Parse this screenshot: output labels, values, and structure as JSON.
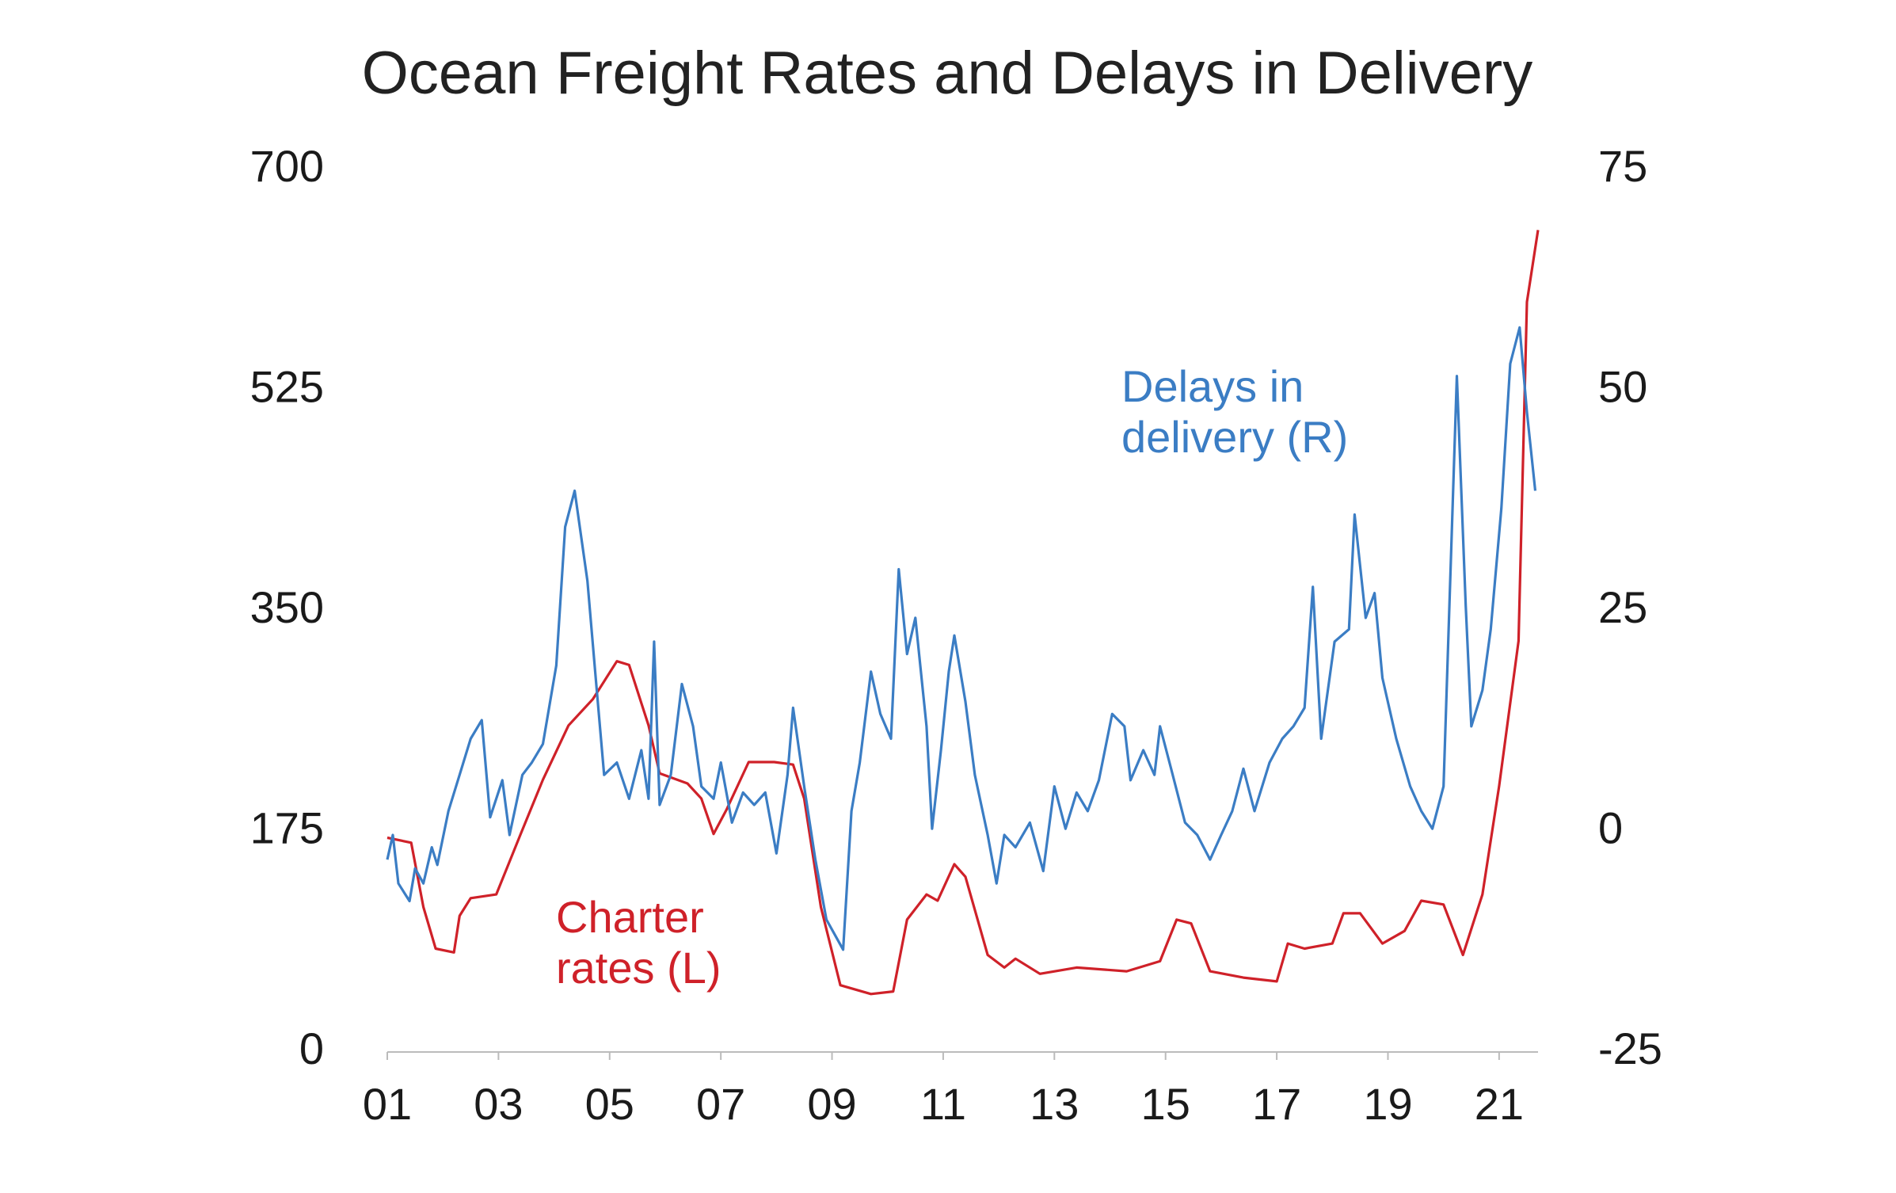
{
  "chart_data": {
    "type": "line",
    "title": "Ocean Freight Rates and Delays in Delivery",
    "xlim": [
      2001,
      2021.7
    ],
    "xticks": [
      {
        "value": 2001,
        "label": "01"
      },
      {
        "value": 2003,
        "label": "03"
      },
      {
        "value": 2005,
        "label": "05"
      },
      {
        "value": 2007,
        "label": "07"
      },
      {
        "value": 2009,
        "label": "09"
      },
      {
        "value": 2011,
        "label": "11"
      },
      {
        "value": 2013,
        "label": "13"
      },
      {
        "value": 2015,
        "label": "15"
      },
      {
        "value": 2017,
        "label": "17"
      },
      {
        "value": 2019,
        "label": "19"
      },
      {
        "value": 2021,
        "label": "21"
      }
    ],
    "ylim": [
      0,
      700
    ],
    "yticks": [
      0,
      175,
      350,
      525,
      700
    ],
    "y2lim": [
      -25,
      75
    ],
    "y2ticks": [
      -25,
      0,
      25,
      50,
      75
    ],
    "grid": false,
    "series": [
      {
        "name": "Charter rates (L)",
        "color": "#cf2129",
        "axis": "y",
        "x": [
          2001.0,
          2001.43,
          2001.65,
          2001.87,
          2002.2,
          2002.3,
          2002.5,
          2002.96,
          2003.4,
          2003.8,
          2004.26,
          2004.7,
          2005.13,
          2005.35,
          2005.7,
          2005.9,
          2006.4,
          2006.65,
          2006.87,
          2007.1,
          2007.5,
          2007.96,
          2008.3,
          2008.5,
          2008.8,
          2009.15,
          2009.7,
          2010.1,
          2010.35,
          2010.7,
          2010.9,
          2011.2,
          2011.4,
          2011.8,
          2012.1,
          2012.3,
          2012.74,
          2013.4,
          2014.3,
          2014.9,
          2015.2,
          2015.46,
          2015.8,
          2016.4,
          2017.0,
          2017.2,
          2017.5,
          2018.0,
          2018.2,
          2018.5,
          2018.9,
          2019.3,
          2019.6,
          2020.0,
          2020.35,
          2020.7,
          2021.0,
          2021.35,
          2021.5,
          2021.7
        ],
        "values": [
          170,
          166,
          115,
          82,
          79,
          108,
          122,
          125,
          173,
          216,
          259,
          280,
          310,
          307,
          259,
          221,
          213,
          201,
          173,
          192,
          230,
          230,
          228,
          201,
          115,
          53,
          46,
          48,
          105,
          125,
          120,
          149,
          139,
          77,
          67,
          74,
          62,
          67,
          64,
          72,
          105,
          102,
          64,
          59,
          56,
          86,
          82,
          86,
          110,
          110,
          86,
          96,
          120,
          117,
          77,
          125,
          211,
          326,
          595,
          652
        ]
      },
      {
        "name": "Delays in delivery (R)",
        "color": "#3b7dc4",
        "axis": "y2",
        "x": [
          2001.0,
          2001.1,
          2001.2,
          2001.4,
          2001.5,
          2001.65,
          2001.8,
          2001.9,
          2002.1,
          2002.3,
          2002.5,
          2002.7,
          2002.85,
          2003.07,
          2003.2,
          2003.43,
          2003.6,
          2003.8,
          2004.04,
          2004.2,
          2004.37,
          2004.6,
          2004.74,
          2004.9,
          2005.13,
          2005.35,
          2005.57,
          2005.7,
          2005.8,
          2005.9,
          2006.1,
          2006.3,
          2006.5,
          2006.65,
          2006.87,
          2007.0,
          2007.2,
          2007.4,
          2007.6,
          2007.8,
          2008.0,
          2008.2,
          2008.3,
          2008.5,
          2008.7,
          2008.9,
          2009.2,
          2009.35,
          2009.5,
          2009.7,
          2009.87,
          2010.06,
          2010.2,
          2010.35,
          2010.5,
          2010.7,
          2010.8,
          2010.96,
          2011.1,
          2011.2,
          2011.4,
          2011.57,
          2011.8,
          2011.96,
          2012.1,
          2012.3,
          2012.56,
          2012.8,
          2013.0,
          2013.2,
          2013.4,
          2013.6,
          2013.8,
          2014.04,
          2014.26,
          2014.37,
          2014.6,
          2014.8,
          2014.9,
          2015.1,
          2015.35,
          2015.57,
          2015.8,
          2016.0,
          2016.2,
          2016.4,
          2016.6,
          2016.87,
          2017.1,
          2017.3,
          2017.5,
          2017.65,
          2017.8,
          2018.04,
          2018.3,
          2018.4,
          2018.6,
          2018.76,
          2018.9,
          2019.15,
          2019.4,
          2019.6,
          2019.8,
          2020.0,
          2020.24,
          2020.4,
          2020.5,
          2020.7,
          2020.85,
          2021.04,
          2021.2,
          2021.37,
          2021.5,
          2021.65
        ],
        "values": [
          -3.2,
          -0.4,
          -5.9,
          -7.9,
          -4.2,
          -5.9,
          -1.8,
          -3.8,
          2.3,
          6.4,
          10.5,
          12.6,
          1.6,
          5.8,
          -0.4,
          6.4,
          7.8,
          9.9,
          18.8,
          34.5,
          38.6,
          28.4,
          18.1,
          6.4,
          7.8,
          3.7,
          9.2,
          3.7,
          21.5,
          3.0,
          6.4,
          16.7,
          11.9,
          5.1,
          3.7,
          7.8,
          1.0,
          4.4,
          3.0,
          4.4,
          -2.5,
          6.4,
          14.0,
          5.1,
          -3.2,
          -10.0,
          -13.4,
          2.3,
          7.8,
          18.1,
          13.3,
          10.5,
          29.7,
          20.1,
          24.2,
          11.9,
          0.3,
          9.2,
          18.1,
          22.2,
          14.7,
          6.4,
          -0.4,
          -5.9,
          -0.4,
          -1.8,
          1.0,
          -4.5,
          5.1,
          0.3,
          4.4,
          2.3,
          5.8,
          13.3,
          11.9,
          5.8,
          9.2,
          6.4,
          11.9,
          7.1,
          1.0,
          -0.4,
          -3.2,
          -0.4,
          2.3,
          7.1,
          2.3,
          7.8,
          10.5,
          11.9,
          14.0,
          27.7,
          10.5,
          21.5,
          22.9,
          35.9,
          24.2,
          27.0,
          17.4,
          10.5,
          5.1,
          2.3,
          0.3,
          5.1,
          51.6,
          25.6,
          11.9,
          16.0,
          22.9,
          36.6,
          53.0,
          57.1,
          47.5,
          38.6
        ]
      }
    ]
  }
}
